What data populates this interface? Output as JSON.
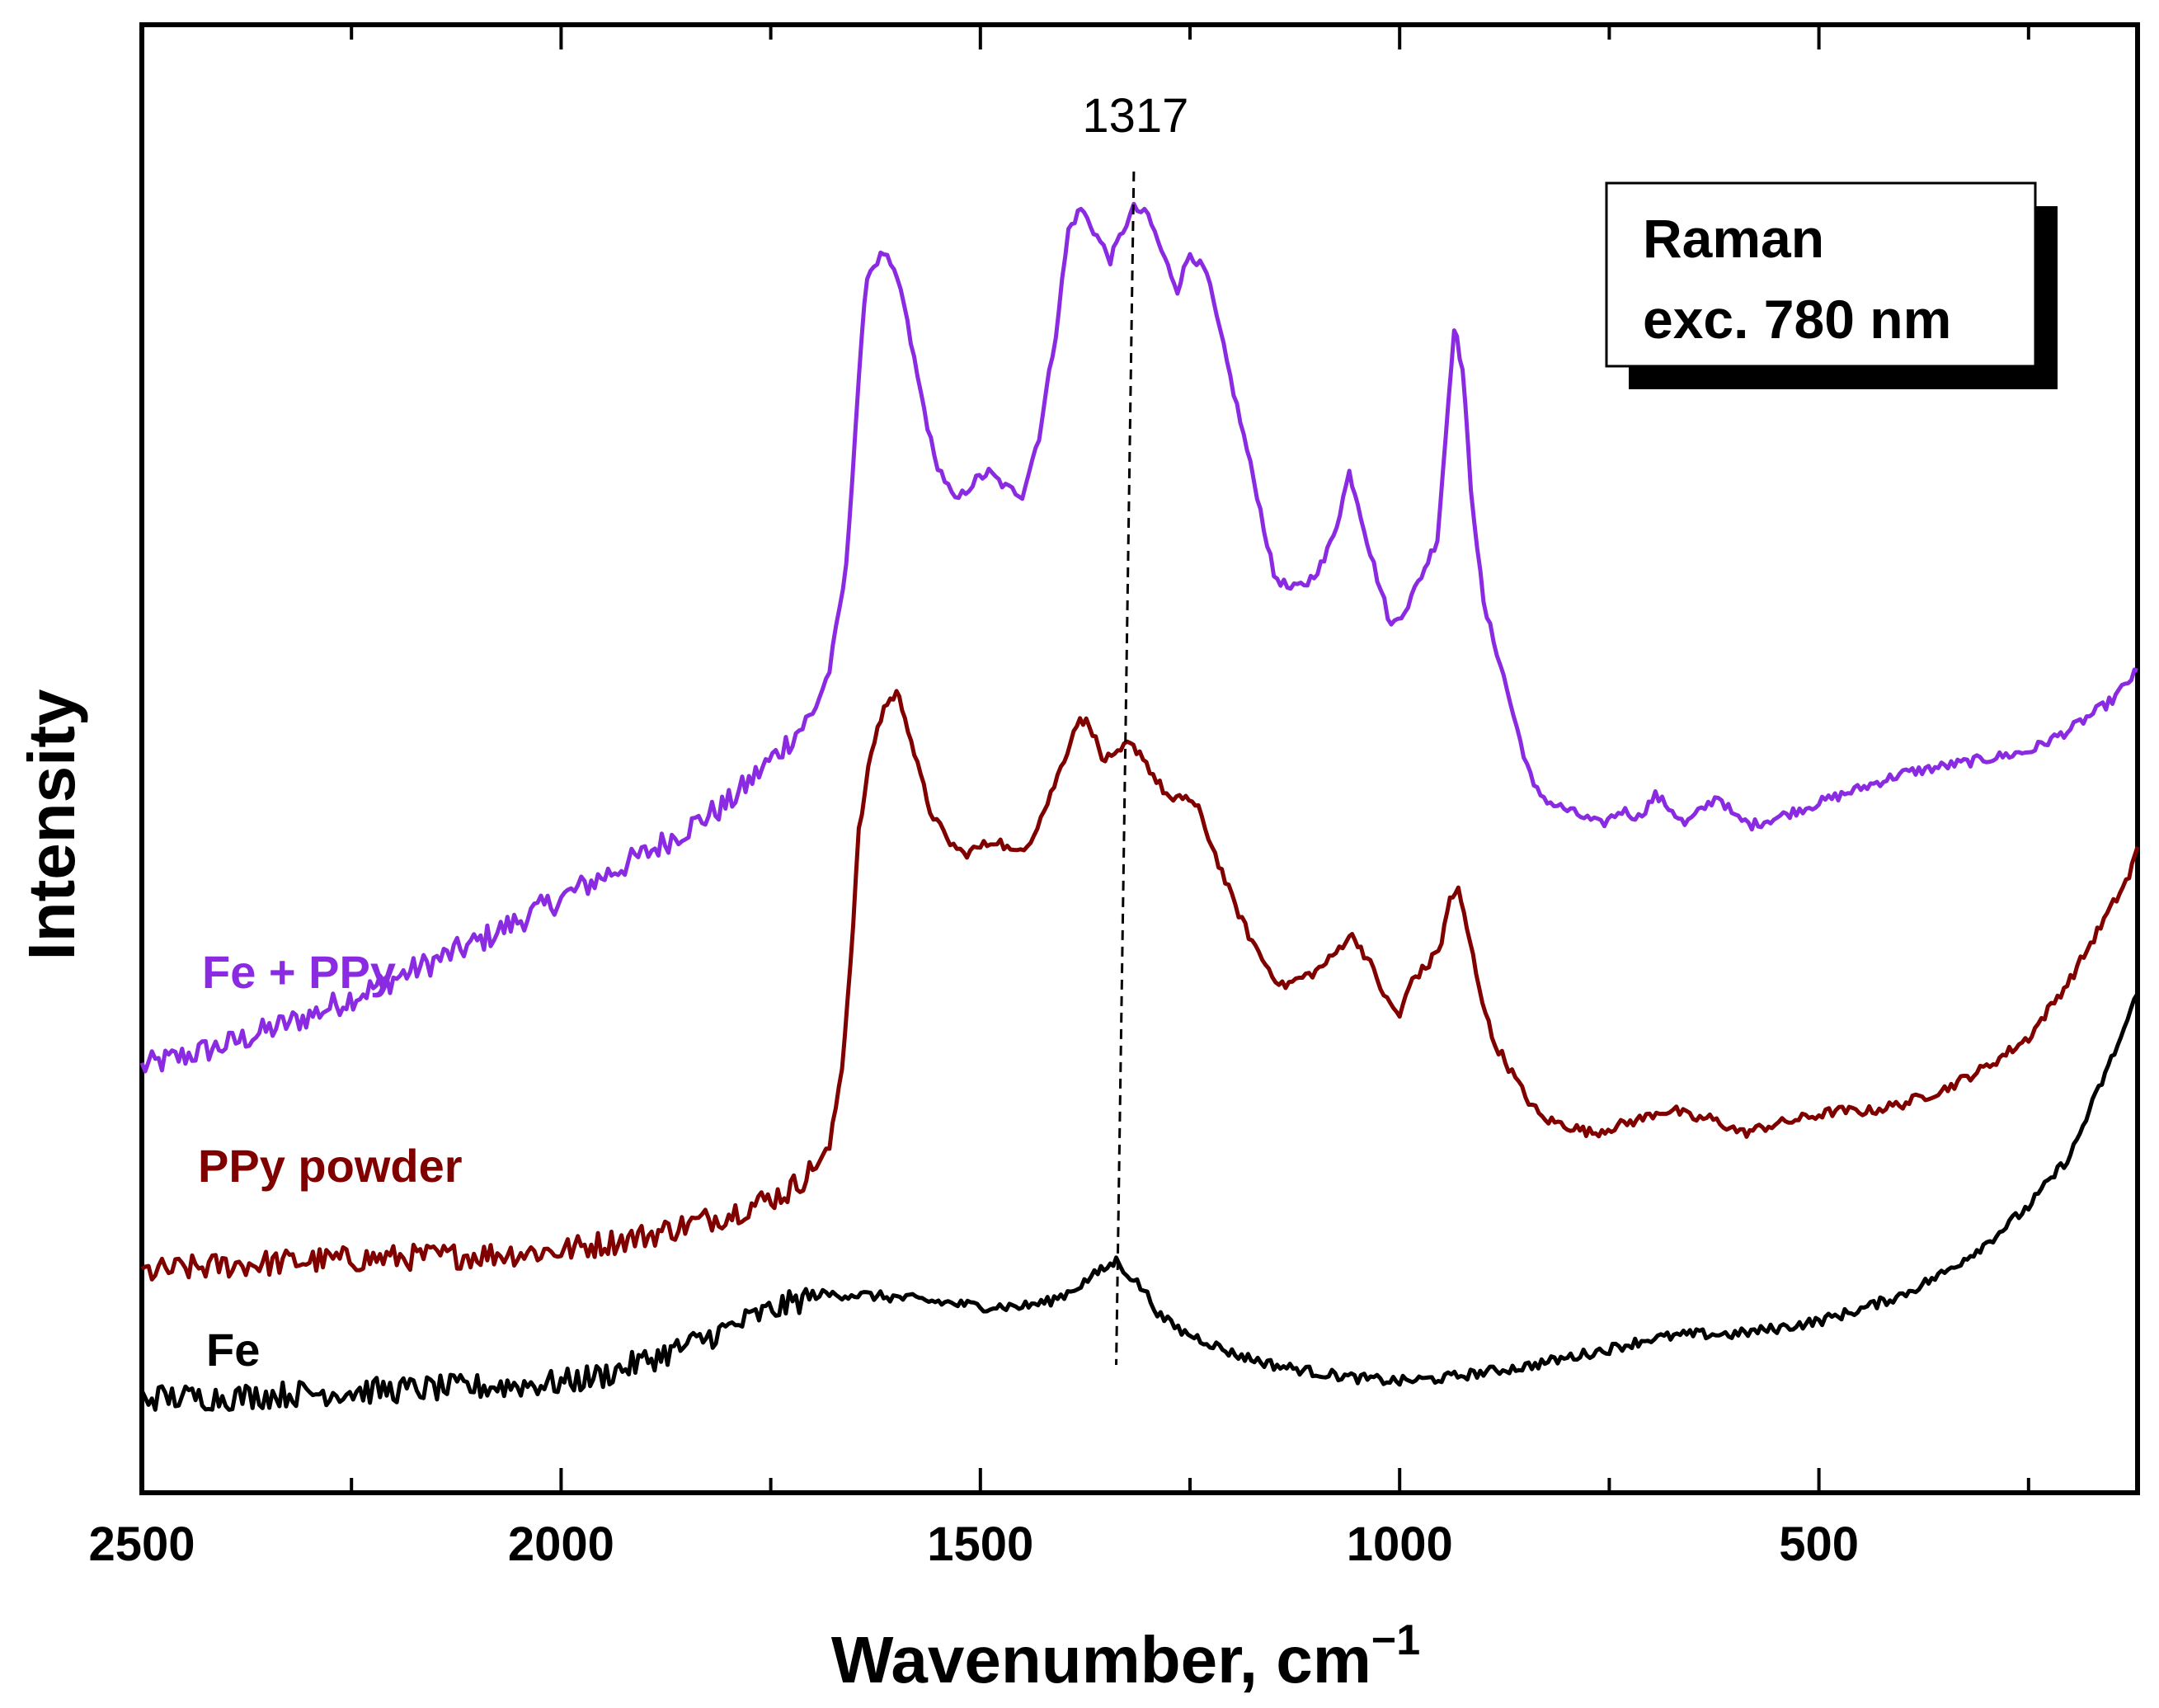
{
  "chart_data": {
    "type": "line",
    "xlabel": "Wavenumber, cm",
    "xlabel_superscript": "−1",
    "ylabel": "Intensity",
    "xlim": [
      2500,
      120
    ],
    "x_reversed": true,
    "ylim": [
      0,
      10
    ],
    "y_ticks_labeled": false,
    "x_ticks": [
      2500,
      2000,
      1500,
      1000,
      500
    ],
    "x_tick_labels": [
      "2500",
      "2000",
      "1500",
      "1000",
      "500"
    ],
    "grid": false,
    "legend_box": {
      "lines": [
        "Raman",
        "exc. 780 nm"
      ],
      "placement": "top-right"
    },
    "annotation": {
      "label": "1317",
      "x_top": 1317,
      "x_bottom": 1338
    },
    "series": [
      {
        "name": "Fe + PPy",
        "color": "#8a2be2",
        "points": [
          [
            2500,
            2.9
          ],
          [
            2400,
            3.05
          ],
          [
            2300,
            3.25
          ],
          [
            2200,
            3.5
          ],
          [
            2100,
            3.75
          ],
          [
            2000,
            4.05
          ],
          [
            1900,
            4.35
          ],
          [
            1800,
            4.7
          ],
          [
            1740,
            5.05
          ],
          [
            1700,
            5.3
          ],
          [
            1680,
            5.6
          ],
          [
            1660,
            6.3
          ],
          [
            1645,
            7.6
          ],
          [
            1635,
            8.3
          ],
          [
            1615,
            8.45
          ],
          [
            1595,
            8.2
          ],
          [
            1575,
            7.6
          ],
          [
            1555,
            7.05
          ],
          [
            1530,
            6.75
          ],
          [
            1505,
            6.9
          ],
          [
            1490,
            6.95
          ],
          [
            1470,
            6.85
          ],
          [
            1450,
            6.8
          ],
          [
            1430,
            7.2
          ],
          [
            1410,
            7.9
          ],
          [
            1395,
            8.6
          ],
          [
            1380,
            8.75
          ],
          [
            1365,
            8.6
          ],
          [
            1345,
            8.4
          ],
          [
            1330,
            8.6
          ],
          [
            1317,
            8.75
          ],
          [
            1300,
            8.7
          ],
          [
            1280,
            8.4
          ],
          [
            1265,
            8.2
          ],
          [
            1250,
            8.45
          ],
          [
            1230,
            8.3
          ],
          [
            1210,
            7.8
          ],
          [
            1190,
            7.3
          ],
          [
            1170,
            6.8
          ],
          [
            1150,
            6.25
          ],
          [
            1130,
            6.15
          ],
          [
            1110,
            6.2
          ],
          [
            1090,
            6.35
          ],
          [
            1075,
            6.6
          ],
          [
            1060,
            6.95
          ],
          [
            1050,
            6.75
          ],
          [
            1035,
            6.4
          ],
          [
            1010,
            5.9
          ],
          [
            990,
            6.05
          ],
          [
            970,
            6.3
          ],
          [
            955,
            6.5
          ],
          [
            945,
            7.2
          ],
          [
            935,
            7.95
          ],
          [
            925,
            7.65
          ],
          [
            915,
            6.85
          ],
          [
            900,
            6.05
          ],
          [
            880,
            5.65
          ],
          [
            860,
            5.2
          ],
          [
            840,
            4.8
          ],
          [
            820,
            4.7
          ],
          [
            800,
            4.65
          ],
          [
            760,
            4.55
          ],
          [
            735,
            4.65
          ],
          [
            715,
            4.6
          ],
          [
            695,
            4.75
          ],
          [
            675,
            4.65
          ],
          [
            660,
            4.55
          ],
          [
            640,
            4.65
          ],
          [
            620,
            4.75
          ],
          [
            600,
            4.6
          ],
          [
            580,
            4.55
          ],
          [
            550,
            4.6
          ],
          [
            500,
            4.7
          ],
          [
            450,
            4.8
          ],
          [
            400,
            4.9
          ],
          [
            350,
            4.95
          ],
          [
            300,
            5.0
          ],
          [
            250,
            5.05
          ],
          [
            200,
            5.2
          ],
          [
            150,
            5.4
          ],
          [
            120,
            5.6
          ]
        ]
      },
      {
        "name": "PPy powder",
        "color": "#800000",
        "points": [
          [
            2500,
            1.5
          ],
          [
            2400,
            1.55
          ],
          [
            2300,
            1.58
          ],
          [
            2200,
            1.6
          ],
          [
            2100,
            1.62
          ],
          [
            2000,
            1.65
          ],
          [
            1900,
            1.75
          ],
          [
            1800,
            1.9
          ],
          [
            1730,
            2.05
          ],
          [
            1700,
            2.2
          ],
          [
            1680,
            2.35
          ],
          [
            1665,
            2.9
          ],
          [
            1655,
            3.6
          ],
          [
            1645,
            4.5
          ],
          [
            1630,
            5.05
          ],
          [
            1615,
            5.35
          ],
          [
            1600,
            5.45
          ],
          [
            1590,
            5.3
          ],
          [
            1575,
            4.95
          ],
          [
            1560,
            4.65
          ],
          [
            1540,
            4.45
          ],
          [
            1520,
            4.35
          ],
          [
            1500,
            4.4
          ],
          [
            1480,
            4.45
          ],
          [
            1460,
            4.35
          ],
          [
            1440,
            4.45
          ],
          [
            1420,
            4.7
          ],
          [
            1400,
            5.0
          ],
          [
            1385,
            5.25
          ],
          [
            1370,
            5.25
          ],
          [
            1355,
            5.0
          ],
          [
            1340,
            5.0
          ],
          [
            1325,
            5.1
          ],
          [
            1310,
            5.05
          ],
          [
            1290,
            4.85
          ],
          [
            1270,
            4.7
          ],
          [
            1255,
            4.75
          ],
          [
            1240,
            4.65
          ],
          [
            1220,
            4.35
          ],
          [
            1200,
            4.05
          ],
          [
            1180,
            3.8
          ],
          [
            1160,
            3.6
          ],
          [
            1140,
            3.45
          ],
          [
            1120,
            3.5
          ],
          [
            1100,
            3.55
          ],
          [
            1080,
            3.65
          ],
          [
            1060,
            3.8
          ],
          [
            1050,
            3.75
          ],
          [
            1035,
            3.6
          ],
          [
            1015,
            3.35
          ],
          [
            1000,
            3.25
          ],
          [
            985,
            3.5
          ],
          [
            965,
            3.6
          ],
          [
            950,
            3.75
          ],
          [
            940,
            4.05
          ],
          [
            930,
            4.1
          ],
          [
            920,
            3.85
          ],
          [
            905,
            3.45
          ],
          [
            890,
            3.1
          ],
          [
            870,
            2.9
          ],
          [
            850,
            2.7
          ],
          [
            830,
            2.55
          ],
          [
            800,
            2.5
          ],
          [
            770,
            2.45
          ],
          [
            740,
            2.5
          ],
          [
            710,
            2.55
          ],
          [
            690,
            2.6
          ],
          [
            670,
            2.6
          ],
          [
            650,
            2.55
          ],
          [
            630,
            2.55
          ],
          [
            610,
            2.5
          ],
          [
            590,
            2.45
          ],
          [
            560,
            2.5
          ],
          [
            520,
            2.55
          ],
          [
            480,
            2.6
          ],
          [
            440,
            2.6
          ],
          [
            400,
            2.65
          ],
          [
            350,
            2.75
          ],
          [
            300,
            2.9
          ],
          [
            250,
            3.1
          ],
          [
            200,
            3.5
          ],
          [
            160,
            3.9
          ],
          [
            130,
            4.2
          ],
          [
            120,
            4.4
          ]
        ]
      },
      {
        "name": "Fe",
        "color": "#000000",
        "points": [
          [
            2500,
            0.65
          ],
          [
            2400,
            0.65
          ],
          [
            2300,
            0.68
          ],
          [
            2200,
            0.7
          ],
          [
            2100,
            0.72
          ],
          [
            2000,
            0.75
          ],
          [
            1950,
            0.8
          ],
          [
            1900,
            0.9
          ],
          [
            1850,
            1.0
          ],
          [
            1800,
            1.12
          ],
          [
            1760,
            1.22
          ],
          [
            1720,
            1.3
          ],
          [
            1700,
            1.35
          ],
          [
            1680,
            1.35
          ],
          [
            1650,
            1.35
          ],
          [
            1600,
            1.33
          ],
          [
            1550,
            1.3
          ],
          [
            1500,
            1.27
          ],
          [
            1450,
            1.27
          ],
          [
            1420,
            1.3
          ],
          [
            1400,
            1.35
          ],
          [
            1380,
            1.42
          ],
          [
            1360,
            1.5
          ],
          [
            1345,
            1.55
          ],
          [
            1338,
            1.58
          ],
          [
            1325,
            1.5
          ],
          [
            1305,
            1.38
          ],
          [
            1285,
            1.2
          ],
          [
            1260,
            1.1
          ],
          [
            1230,
            1.03
          ],
          [
            1200,
            0.95
          ],
          [
            1150,
            0.87
          ],
          [
            1100,
            0.82
          ],
          [
            1050,
            0.78
          ],
          [
            1000,
            0.76
          ],
          [
            950,
            0.78
          ],
          [
            900,
            0.82
          ],
          [
            850,
            0.86
          ],
          [
            800,
            0.92
          ],
          [
            750,
            0.98
          ],
          [
            700,
            1.05
          ],
          [
            650,
            1.08
          ],
          [
            600,
            1.08
          ],
          [
            550,
            1.12
          ],
          [
            500,
            1.17
          ],
          [
            450,
            1.25
          ],
          [
            400,
            1.35
          ],
          [
            350,
            1.5
          ],
          [
            300,
            1.7
          ],
          [
            250,
            1.95
          ],
          [
            200,
            2.3
          ],
          [
            170,
            2.7
          ],
          [
            140,
            3.1
          ],
          [
            120,
            3.4
          ]
        ]
      }
    ]
  }
}
